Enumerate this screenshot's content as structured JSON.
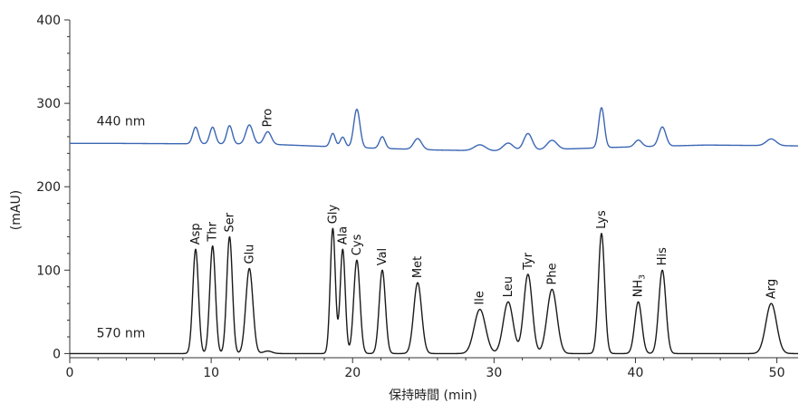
{
  "chart_data": {
    "type": "line",
    "xlabel": "保持時間 (min)",
    "ylabel": "(mAU)",
    "xlim": [
      0,
      51.5
    ],
    "ylim": [
      -5,
      400
    ],
    "x_ticks": [
      0,
      10,
      20,
      30,
      40,
      50
    ],
    "y_ticks": [
      0,
      100,
      200,
      300,
      400
    ],
    "grid": false,
    "colors": {
      "upper": "#3a66b4",
      "lower": "#1a1a1a",
      "axis": "#333333"
    },
    "series": [
      {
        "name": "440 nm",
        "baseline": [
          [
            0,
            252
          ],
          [
            3,
            252
          ],
          [
            14,
            251
          ],
          [
            20,
            247
          ],
          [
            26,
            244
          ],
          [
            30,
            243
          ],
          [
            33,
            244
          ],
          [
            38,
            247
          ],
          [
            45,
            250
          ],
          [
            51.5,
            249
          ]
        ],
        "peaks": [
          {
            "label": "",
            "x": 8.9,
            "height": 20,
            "width": 0.2
          },
          {
            "label": "",
            "x": 10.1,
            "height": 20,
            "width": 0.2
          },
          {
            "label": "",
            "x": 11.3,
            "height": 22,
            "width": 0.2
          },
          {
            "label": "",
            "x": 12.7,
            "height": 23,
            "width": 0.25
          },
          {
            "label": "Pro",
            "x": 14.0,
            "height": 15,
            "width": 0.25
          },
          {
            "label": "",
            "x": 18.6,
            "height": 16,
            "width": 0.18
          },
          {
            "label": "",
            "x": 19.3,
            "height": 12,
            "width": 0.18
          },
          {
            "label": "",
            "x": 20.3,
            "height": 46,
            "width": 0.22
          },
          {
            "label": "",
            "x": 22.1,
            "height": 14,
            "width": 0.2
          },
          {
            "label": "",
            "x": 24.6,
            "height": 13,
            "width": 0.28
          },
          {
            "label": "",
            "x": 29.0,
            "height": 7,
            "width": 0.4
          },
          {
            "label": "",
            "x": 31.0,
            "height": 9,
            "width": 0.35
          },
          {
            "label": "",
            "x": 32.4,
            "height": 20,
            "width": 0.3
          },
          {
            "label": "",
            "x": 34.1,
            "height": 11,
            "width": 0.35
          },
          {
            "label": "",
            "x": 37.6,
            "height": 48,
            "width": 0.2
          },
          {
            "label": "",
            "x": 40.2,
            "height": 8,
            "width": 0.25
          },
          {
            "label": "",
            "x": 41.9,
            "height": 23,
            "width": 0.25
          },
          {
            "label": "",
            "x": 49.6,
            "height": 8,
            "width": 0.35
          }
        ]
      },
      {
        "name": "570 nm",
        "baseline": [
          [
            0,
            0
          ],
          [
            51.5,
            0
          ]
        ],
        "peaks": [
          {
            "label": "Asp",
            "x": 8.9,
            "height": 125,
            "width": 0.2
          },
          {
            "label": "Thr",
            "x": 10.1,
            "height": 129,
            "width": 0.2
          },
          {
            "label": "Ser",
            "x": 11.3,
            "height": 140,
            "width": 0.2
          },
          {
            "label": "Glu",
            "x": 12.7,
            "height": 102,
            "width": 0.25
          },
          {
            "label": "",
            "x": 14.0,
            "height": 3,
            "width": 0.3
          },
          {
            "label": "Gly",
            "x": 18.6,
            "height": 150,
            "width": 0.18
          },
          {
            "label": "Ala",
            "x": 19.3,
            "height": 125,
            "width": 0.18
          },
          {
            "label": "Cys",
            "x": 20.3,
            "height": 112,
            "width": 0.22
          },
          {
            "label": "Val",
            "x": 22.1,
            "height": 100,
            "width": 0.22
          },
          {
            "label": "Met",
            "x": 24.6,
            "height": 85,
            "width": 0.28
          },
          {
            "label": "Ile",
            "x": 29.0,
            "height": 53,
            "width": 0.4
          },
          {
            "label": "Leu",
            "x": 31.0,
            "height": 62,
            "width": 0.35
          },
          {
            "label": "Tyr",
            "x": 32.4,
            "height": 95,
            "width": 0.3
          },
          {
            "label": "Phe",
            "x": 34.1,
            "height": 77,
            "width": 0.35
          },
          {
            "label": "Lys",
            "x": 37.6,
            "height": 144,
            "width": 0.22
          },
          {
            "label": "NH3",
            "x": 40.2,
            "height": 62,
            "width": 0.25
          },
          {
            "label": "His",
            "x": 41.9,
            "height": 100,
            "width": 0.25
          },
          {
            "label": "Arg",
            "x": 49.6,
            "height": 60,
            "width": 0.38
          }
        ]
      }
    ]
  }
}
